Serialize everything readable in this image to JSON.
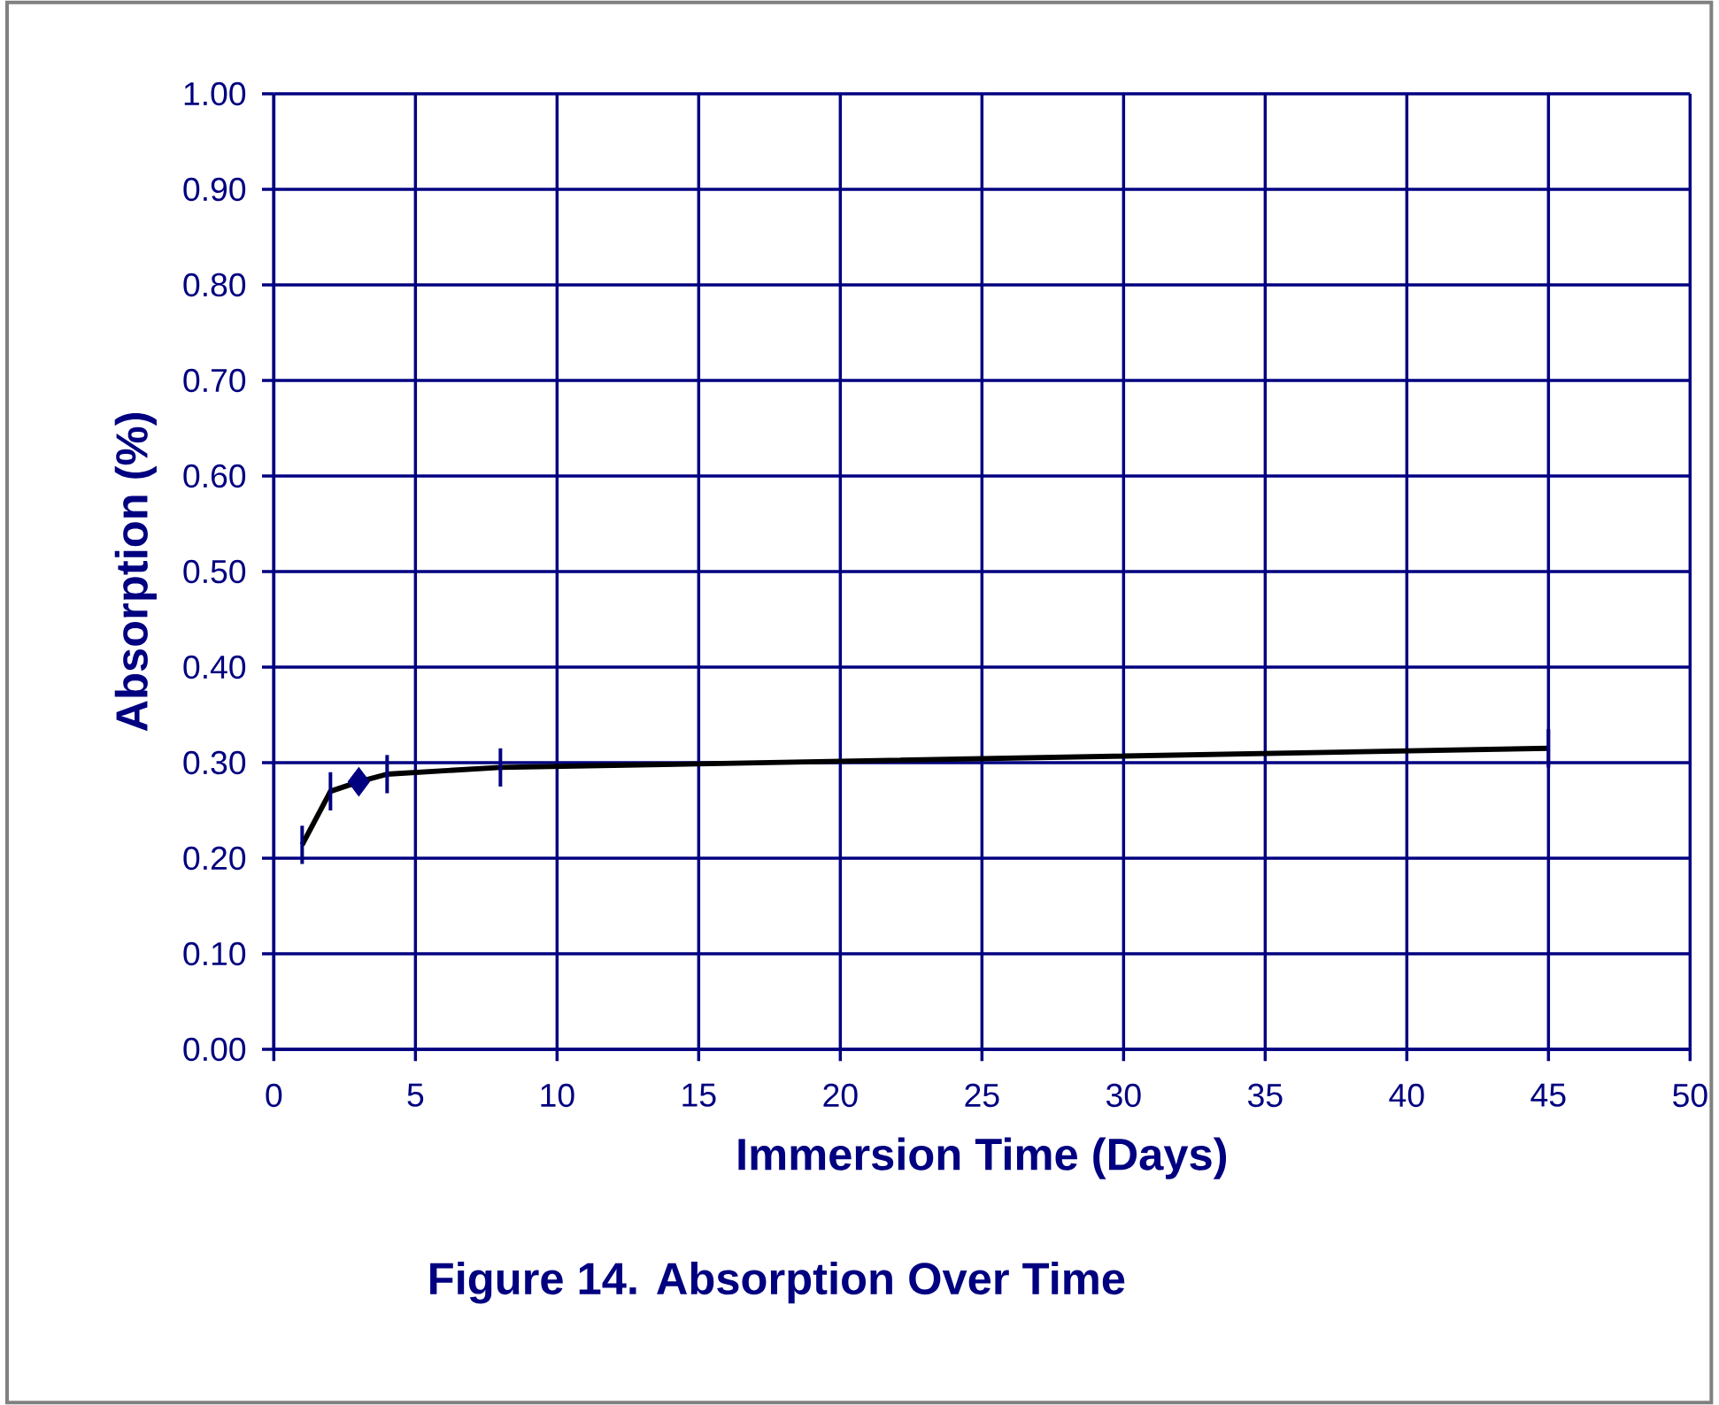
{
  "chart_data": {
    "type": "line",
    "title": "Figure 14.  Absorption Over Time",
    "xlabel": "Immersion Time (Days)",
    "ylabel": "Absorption (%)",
    "xlim": [
      0,
      50
    ],
    "xticks": [
      0,
      5,
      10,
      15,
      20,
      25,
      30,
      35,
      40,
      45,
      50
    ],
    "ylim": [
      0,
      1
    ],
    "yticks": [
      {
        "value": 0,
        "label": "0.00"
      },
      {
        "value": 0.1,
        "label": "0.10"
      },
      {
        "value": 0.2,
        "label": "0.20"
      },
      {
        "value": 0.3,
        "label": "0.30"
      },
      {
        "value": 0.4,
        "label": "0.40"
      },
      {
        "value": 0.5,
        "label": "0.50"
      },
      {
        "value": 0.6,
        "label": "0.60"
      },
      {
        "value": 0.7,
        "label": "0.70"
      },
      {
        "value": 0.8,
        "label": "0.80"
      },
      {
        "value": 0.9,
        "label": "0.90"
      },
      {
        "value": 1,
        "label": "1.00"
      }
    ],
    "grid": true,
    "series": [
      {
        "color": "#000000",
        "marker": "none",
        "x": [
          1,
          2,
          3,
          4,
          8,
          45
        ],
        "values": [
          0.214,
          0.27,
          0.28,
          0.288,
          0.295,
          0.315
        ],
        "errors": [
          0.02,
          0.02,
          null,
          0.02,
          0.02,
          0.02
        ]
      },
      {
        "type": "scatter",
        "color": "#000080",
        "marker": "diamond",
        "x": [
          3
        ],
        "values": [
          0.28
        ]
      }
    ]
  }
}
